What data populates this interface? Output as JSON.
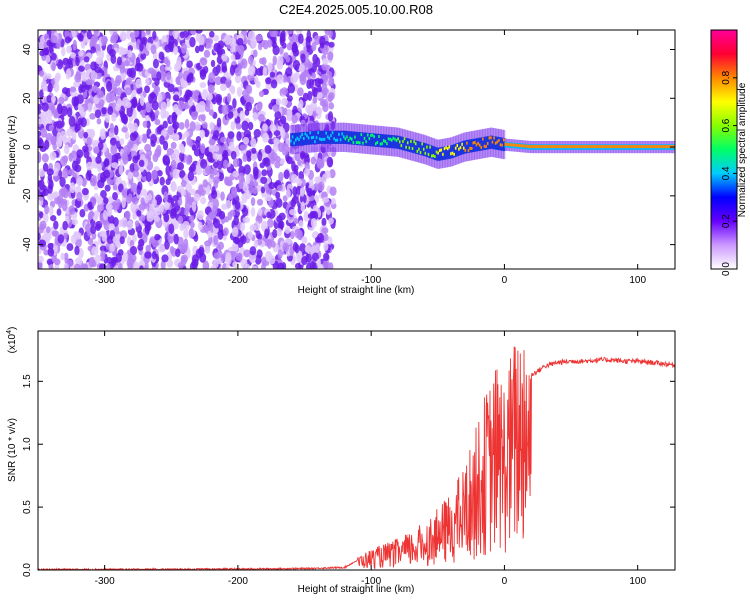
{
  "title": "C2E4.2025.005.10.00.R08",
  "chart_data": [
    {
      "type": "heatmap",
      "title": "C2E4.2025.005.10.00.R08",
      "xlabel": "Height of straight line (km)",
      "ylabel": "Frequency (Hz)",
      "xlim": [
        -350,
        128
      ],
      "ylim": [
        -50,
        48
      ],
      "x_ticks": [
        -300,
        -200,
        -100,
        0,
        100
      ],
      "y_ticks": [
        -40,
        -20,
        0,
        20,
        40
      ],
      "grid": false,
      "colorbar": {
        "label": "Normalized spectral amplitude",
        "range": [
          0.0,
          1.0
        ],
        "ticks": [
          0.0,
          0.2,
          0.4,
          0.6,
          0.8
        ],
        "colors": [
          "#ffffff",
          "#cc99ff",
          "#6600ff",
          "#0000ff",
          "#00ccff",
          "#00ff66",
          "#88ff00",
          "#ffff00",
          "#ff8800",
          "#ff0033",
          "#ff0099"
        ]
      },
      "noise_region_x": [
        -350,
        -128
      ],
      "signal_trace": {
        "x": [
          -160,
          -140,
          -120,
          -100,
          -80,
          -60,
          -50,
          -40,
          -30,
          -20,
          -10,
          0,
          20,
          50,
          80,
          100,
          128
        ],
        "frequency": [
          3,
          4,
          4,
          3,
          2,
          -1,
          -3,
          -2,
          0,
          1,
          2,
          1,
          0,
          0,
          0,
          0,
          0
        ],
        "amplitude": [
          0.35,
          0.4,
          0.45,
          0.5,
          0.55,
          0.6,
          0.65,
          0.7,
          0.75,
          0.8,
          0.8,
          0.85,
          0.75,
          0.75,
          0.75,
          0.8,
          0.85
        ]
      }
    },
    {
      "type": "line",
      "xlabel": "Height of straight line (km)",
      "ylabel": "SNR (10 * v/v)",
      "y_scale_label": "(x10",
      "y_scale_exponent": "4",
      "y_scale": 10000,
      "xlim": [
        -350,
        128
      ],
      "ylim": [
        0,
        1.9
      ],
      "x_ticks": [
        -300,
        -200,
        -100,
        0,
        100
      ],
      "y_ticks": [
        "0.0",
        "0.5",
        "1.0",
        "1.5"
      ],
      "y_tick_values": [
        0,
        0.5,
        1.0,
        1.5
      ],
      "grid": false,
      "color": "#ee3333",
      "series": [
        {
          "x": [
            -350,
            -300,
            -250,
            -200,
            -150,
            -120,
            -110,
            -100,
            -90,
            -80,
            -70,
            -60,
            -50,
            -40,
            -30,
            -20,
            -15,
            -10,
            -5,
            0,
            5,
            10,
            15,
            20,
            25,
            30,
            40,
            50,
            60,
            70,
            80,
            90,
            100,
            110,
            120,
            128
          ],
          "y": [
            0.005,
            0.005,
            0.006,
            0.008,
            0.012,
            0.02,
            0.08,
            0.12,
            0.15,
            0.18,
            0.22,
            0.28,
            0.35,
            0.45,
            0.6,
            0.85,
            1.0,
            1.1,
            1.2,
            1.1,
            1.25,
            1.4,
            1.5,
            1.55,
            1.58,
            1.62,
            1.65,
            1.66,
            1.66,
            1.67,
            1.67,
            1.66,
            1.66,
            1.65,
            1.64,
            1.63
          ]
        }
      ]
    }
  ]
}
